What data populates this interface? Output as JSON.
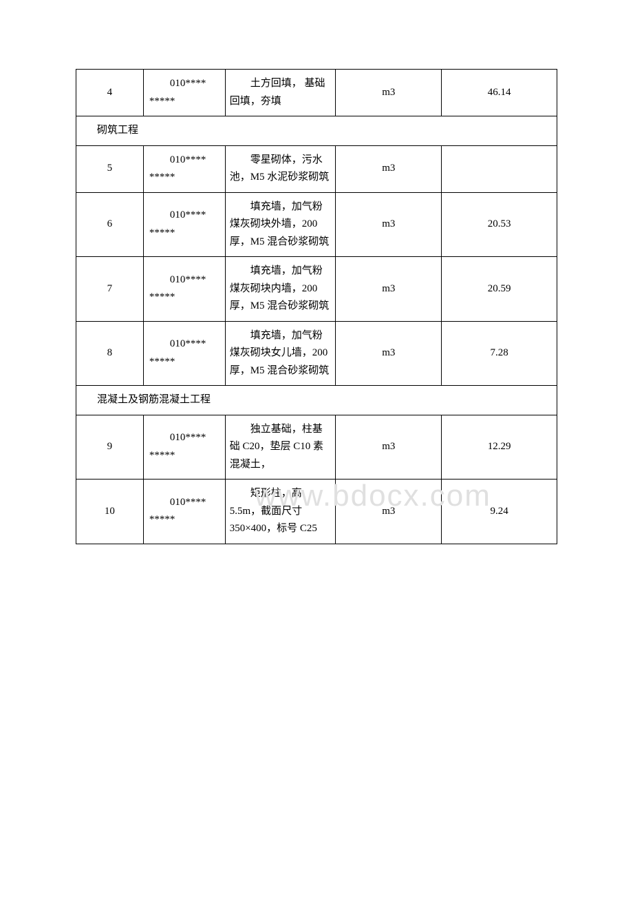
{
  "watermark": "www.bdocx.com",
  "rows": [
    {
      "type": "data",
      "num": "4",
      "code": "010**** *****",
      "desc": "土方回填， 基础回填，夯填",
      "unit": "m3",
      "qty": "46.14"
    },
    {
      "type": "section",
      "label": "砌筑工程"
    },
    {
      "type": "data",
      "num": "5",
      "code": "010**** *****",
      "desc": "零星砌体，污水池，M5 水泥砂浆砌筑",
      "unit": "m3",
      "qty": ""
    },
    {
      "type": "data",
      "num": "6",
      "code": "010**** *****",
      "desc": "填充墙，加气粉煤灰砌块外墙，200 厚，M5 混合砂浆砌筑",
      "unit": "m3",
      "qty": "20.53"
    },
    {
      "type": "data",
      "num": "7",
      "code": "010**** *****",
      "desc": "填充墙，加气粉煤灰砌块内墙，200 厚，M5 混合砂浆砌筑",
      "unit": "m3",
      "qty": "20.59"
    },
    {
      "type": "data",
      "num": "8",
      "code": "010**** *****",
      "desc": "填充墙，加气粉煤灰砌块女儿墙，200 厚，M5 混合砂浆砌筑",
      "unit": "m3",
      "qty": "7.28"
    },
    {
      "type": "section",
      "label": "混凝土及钢筋混凝土工程"
    },
    {
      "type": "data",
      "num": "9",
      "code": "010**** *****",
      "desc": "独立基础，柱基础 C20，垫层 C10 素混凝土，",
      "unit": "m3",
      "qty": "12.29"
    },
    {
      "type": "data",
      "num": "10",
      "code": "010**** *****",
      "desc": "矩形柱，高 5.5m，截面尺寸 350×400，标号 C25",
      "unit": "m3",
      "qty": "9.24"
    }
  ]
}
